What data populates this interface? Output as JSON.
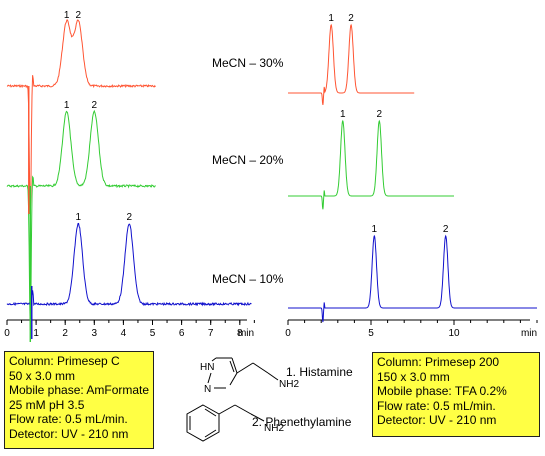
{
  "chart_data": [
    {
      "type": "line",
      "panel": "left",
      "x_unit": "min",
      "xlim": [
        0,
        8.5
      ],
      "x_ticks": [
        0,
        1,
        2,
        3,
        4,
        5,
        6,
        7,
        8
      ],
      "tick_labels": [
        "0",
        "1",
        "2",
        "3",
        "4",
        "5",
        "6",
        "7",
        "8"
      ],
      "x_unit_label": "min",
      "grid": false,
      "series": [
        {
          "name": "MeCN – 30%",
          "color": "#ff5533",
          "xmax": 5.1,
          "dip_at": 0.8,
          "peaks": [
            {
              "label": "1",
              "x": 2.05
            },
            {
              "label": "2",
              "x": 2.45
            }
          ]
        },
        {
          "name": "MeCN – 20%",
          "color": "#33cc33",
          "xmax": 5.1,
          "dip_at": 0.8,
          "peaks": [
            {
              "label": "1",
              "x": 2.05
            },
            {
              "label": "2",
              "x": 3.0
            }
          ]
        },
        {
          "name": "MeCN – 10%",
          "color": "#1111cc",
          "xmax": 8.4,
          "dip_at": 0.8,
          "peaks": [
            {
              "label": "1",
              "x": 2.45
            },
            {
              "label": "2",
              "x": 4.2
            }
          ]
        }
      ],
      "conditions": [
        "Column: Primesep C",
        "50 x 3.0 mm",
        "Mobile phase: AmFormate",
        "25 mM pH 3.5",
        "Flow rate: 0.5 mL/min.",
        "Detector: UV - 210 nm"
      ]
    },
    {
      "type": "line",
      "panel": "right",
      "x_unit": "min",
      "xlim": [
        0,
        15
      ],
      "x_ticks": [
        0,
        5,
        10
      ],
      "tick_labels": [
        "0",
        "5",
        "10"
      ],
      "x_unit_label": "min",
      "grid": false,
      "series": [
        {
          "name": "MeCN – 30%",
          "color": "#ff5533",
          "xmax": 7.6,
          "dip_at": 2.1,
          "peaks": [
            {
              "label": "1",
              "x": 2.6
            },
            {
              "label": "2",
              "x": 3.8
            }
          ]
        },
        {
          "name": "MeCN – 20%",
          "color": "#33cc33",
          "xmax": 10.0,
          "dip_at": 2.1,
          "peaks": [
            {
              "label": "1",
              "x": 3.3
            },
            {
              "label": "2",
              "x": 5.5
            }
          ]
        },
        {
          "name": "MeCN – 10%",
          "color": "#1111cc",
          "xmax": 15.0,
          "dip_at": 2.1,
          "peaks": [
            {
              "label": "1",
              "x": 5.2
            },
            {
              "label": "2",
              "x": 9.5
            }
          ]
        }
      ],
      "conditions": [
        "Column: Primesep 200",
        "150 x 3.0 mm",
        "Mobile phase: TFA 0.2%",
        "Flow rate: 0.5 mL/min.",
        "Detector: UV - 210 nm"
      ]
    }
  ],
  "compounds": [
    {
      "label": "1. Histamine",
      "structure_labels": [
        "HN",
        "N",
        "NH2"
      ]
    },
    {
      "label": "2. Phenethylamine",
      "structure_labels": [
        "NH2"
      ]
    }
  ]
}
